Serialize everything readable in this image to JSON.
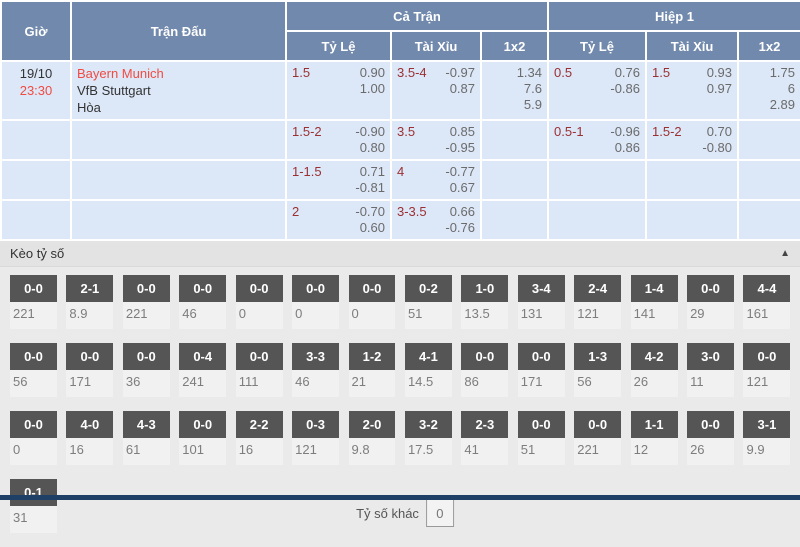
{
  "odds_table": {
    "header": {
      "time": "Giờ",
      "match": "Trận Đấu",
      "full_match": "Cả Trận",
      "first_half": "Hiệp 1",
      "handicap": "Tỷ Lệ",
      "over_under": "Tài Xỉu",
      "one_x_two": "1x2"
    },
    "match": {
      "date": "19/10",
      "kickoff": "23:30",
      "home_team": "Bayern Munich",
      "away_team": "VfB Stuttgart",
      "draw_label": "Hòa"
    },
    "rows": [
      {
        "ft_hdp_line": "1.5",
        "ft_hdp_home": "0.90",
        "ft_hdp_away": "1.00",
        "ft_ou_line": "3.5-4",
        "ft_ou_over": "-0.97",
        "ft_ou_under": "0.87",
        "ft_1x2_home": "1.34",
        "ft_1x2_draw": "7.6",
        "ft_1x2_away": "5.9",
        "h1_hdp_line": "0.5",
        "h1_hdp_home": "0.76",
        "h1_hdp_away": "-0.86",
        "h1_ou_line": "1.5",
        "h1_ou_over": "0.93",
        "h1_ou_under": "0.97",
        "h1_1x2_home": "1.75",
        "h1_1x2_draw": "6",
        "h1_1x2_away": "2.89"
      },
      {
        "ft_hdp_line": "1.5-2",
        "ft_hdp_home": "-0.90",
        "ft_hdp_away": "0.80",
        "ft_ou_line": "3.5",
        "ft_ou_over": "0.85",
        "ft_ou_under": "-0.95",
        "h1_hdp_line": "0.5-1",
        "h1_hdp_home": "-0.96",
        "h1_hdp_away": "0.86",
        "h1_ou_line": "1.5-2",
        "h1_ou_over": "0.70",
        "h1_ou_under": "-0.80"
      },
      {
        "ft_hdp_line": "1-1.5",
        "ft_hdp_home": "0.71",
        "ft_hdp_away": "-0.81",
        "ft_ou_line": "4",
        "ft_ou_over": "-0.77",
        "ft_ou_under": "0.67"
      },
      {
        "ft_hdp_line": "2",
        "ft_hdp_home": "-0.70",
        "ft_hdp_away": "0.60",
        "ft_ou_line": "3-3.5",
        "ft_ou_over": "0.66",
        "ft_ou_under": "-0.76"
      }
    ]
  },
  "score_section": {
    "title": "Kèo tỷ số",
    "collapse_icon": "▲",
    "other_score_label": "Tỷ số khác",
    "other_score_value": "0",
    "score_rows": [
      [
        {
          "score": "0-0",
          "odds": "221"
        },
        {
          "score": "2-1",
          "odds": "8.9"
        },
        {
          "score": "0-0",
          "odds": "221"
        },
        {
          "score": "0-0",
          "odds": "46"
        },
        {
          "score": "0-0",
          "odds": "0"
        },
        {
          "score": "0-0",
          "odds": "0"
        },
        {
          "score": "0-0",
          "odds": "0"
        },
        {
          "score": "0-2",
          "odds": "51"
        },
        {
          "score": "1-0",
          "odds": "13.5"
        },
        {
          "score": "3-4",
          "odds": "131"
        },
        {
          "score": "2-4",
          "odds": "121"
        },
        {
          "score": "1-4",
          "odds": "141"
        },
        {
          "score": "0-0",
          "odds": "29"
        },
        {
          "score": "4-4",
          "odds": "161"
        }
      ],
      [
        {
          "score": "0-0",
          "odds": "56"
        },
        {
          "score": "0-0",
          "odds": "171"
        },
        {
          "score": "0-0",
          "odds": "36"
        },
        {
          "score": "0-4",
          "odds": "241"
        },
        {
          "score": "0-0",
          "odds": "111"
        },
        {
          "score": "3-3",
          "odds": "46"
        },
        {
          "score": "1-2",
          "odds": "21"
        },
        {
          "score": "4-1",
          "odds": "14.5"
        },
        {
          "score": "0-0",
          "odds": "86"
        },
        {
          "score": "0-0",
          "odds": "171"
        },
        {
          "score": "1-3",
          "odds": "56"
        },
        {
          "score": "4-2",
          "odds": "26"
        },
        {
          "score": "3-0",
          "odds": "11"
        },
        {
          "score": "0-0",
          "odds": "121"
        }
      ],
      [
        {
          "score": "0-0",
          "odds": "0"
        },
        {
          "score": "4-0",
          "odds": "16"
        },
        {
          "score": "4-3",
          "odds": "61"
        },
        {
          "score": "0-0",
          "odds": "101"
        },
        {
          "score": "2-2",
          "odds": "16"
        },
        {
          "score": "0-3",
          "odds": "121"
        },
        {
          "score": "2-0",
          "odds": "9.8"
        },
        {
          "score": "3-2",
          "odds": "17.5"
        },
        {
          "score": "2-3",
          "odds": "41"
        },
        {
          "score": "0-0",
          "odds": "51"
        },
        {
          "score": "0-0",
          "odds": "221"
        },
        {
          "score": "1-1",
          "odds": "12"
        },
        {
          "score": "0-0",
          "odds": "26"
        },
        {
          "score": "3-1",
          "odds": "9.9"
        }
      ],
      [
        {
          "score": "0-1",
          "odds": "31"
        }
      ]
    ]
  },
  "colors": {
    "header_bg": "#7189ac",
    "row_bg": "#dce7f7",
    "accent_red": "#f04b42",
    "handicap_maroon": "#9b3032",
    "odds_gray": "#6b6b6b",
    "score_button_bg": "#555555",
    "section_bg": "#e3e3e3",
    "bottom_bar": "#1e3f66"
  }
}
